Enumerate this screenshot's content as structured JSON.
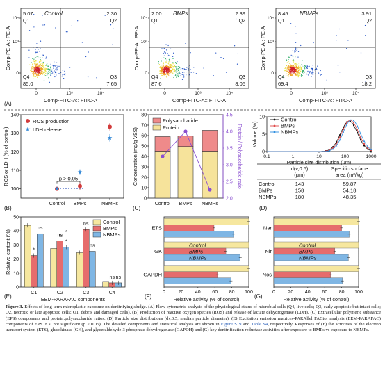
{
  "figure": {
    "flow_cytometry": {
      "panel_label": "(A)",
      "x_axis_label": "Comp-FITC-A:: FITC-A",
      "y_axis_label": "Comp-PE-A:: PE-A",
      "x_ticks": [
        "0",
        "10³",
        "10⁴"
      ],
      "y_ticks": [
        "0",
        "10³",
        "10⁴"
      ],
      "quadrant_names": [
        "Q1",
        "Q2",
        "Q3",
        "Q4"
      ],
      "plots": [
        {
          "title": "Control",
          "q1": "5.07",
          "q2": "2.30",
          "q3": "7.65",
          "q4": "85.0"
        },
        {
          "title": "BMPs",
          "q1": "2.00",
          "q2": "2.39",
          "q3": "8.05",
          "q4": "87.6"
        },
        {
          "title": "NBMPs",
          "q1": "8.45",
          "q2": "3.91",
          "q3": "18.2",
          "q4": "69.4"
        }
      ]
    },
    "panel_b": {
      "label": "(B)",
      "ylabel": "ROS or LDH (% of control)",
      "legend": [
        "ROS production",
        "LDH release"
      ],
      "annotation": "p > 0.05"
    },
    "panel_c": {
      "label": "(C)",
      "ylabel": "Concentration (mg/g VSS)",
      "y2label": "Protein / Polysaccharide ratio",
      "legend": [
        "Polysaccharide",
        "Protein"
      ]
    },
    "panel_d": {
      "label": "(D)",
      "ylabel": "Volume (%)",
      "xlabel": "Particle size distribution (μm)",
      "legend": [
        "Control",
        "BMPs",
        "NBMPs"
      ],
      "table_headers": [
        "d(v,0.5) (μm)",
        "Specific surface area (m²/kg)"
      ],
      "table_rows": [
        {
          "name": "Control",
          "d": "143",
          "area": "59.87"
        },
        {
          "name": "BMPs",
          "d": "158",
          "area": "54.18"
        },
        {
          "name": "NBMPs",
          "d": "180",
          "area": "48.35"
        }
      ]
    },
    "panel_e": {
      "label": "(E)",
      "ylabel": "Relative content (%)",
      "xlabel": "EEM-PARAFAC components",
      "legend": [
        "Control",
        "BMPs",
        "NBMPs"
      ],
      "sig_labels": [
        "*",
        "ns",
        "ns",
        "*",
        "ns",
        "*",
        "ns",
        "ns",
        "ns",
        "ns"
      ]
    },
    "panel_f": {
      "label": "(F)",
      "xlabel": "Relative activity (% of control)",
      "legend": [
        "Control",
        "BMPs",
        "NBMPs"
      ]
    },
    "panel_g": {
      "label": "(G)",
      "xlabel": "Relative activity (% of control)"
    },
    "colors": {
      "control": "#f6e79f",
      "bmps": "#e66c6c",
      "nbmps": "#7fb6e4",
      "protein": "#f6e39b",
      "polysaccharide": "#ef8a8a",
      "ratio": "#8a4fd0"
    }
  },
  "caption": {
    "lead": "Figure 3.",
    "text": "Effects of long-term microplastic exposure on denitrifying sludge. (A) Flow cytometric analysis of the physiological status of microbial cells (Q4, live cells; Q3, early apoptotic but intact cells; Q2, necrotic or late apoptotic cells; Q1, debris and damaged cells). (B) Production of reactive oxygen species (ROS) and release of lactate dehydrogenase (LDH). (C) Extracellular polymeric substance (EPS) components and protein:polysaccharide ratios. (D) Particle size distributions (dv,0.5, median particle diameter). (E) Excitation emission matrices-PARAllel FACtor analysis (EEM-PARAFAC) components of EPS. n.s: not significant (p > 0.05). The detailed components and statistical analysis are shown in",
    "link1": "Figure S19",
    "mid": "and",
    "link2": "Table S4",
    "tail": ", respectively. Responses of (F) the activities of the electron transport system (ETS), glucokinase (GK), and glyceraldehyde-3-phosphate dehydrogenase (GAPDH) and (G) key denitrification reductase activities after exposure to BMPs vs exposure to NBMPs."
  },
  "chart_data": [
    {
      "type": "scatter",
      "panel": "B",
      "categories": [
        "Control",
        "BMPs",
        "NBMPs"
      ],
      "series": [
        {
          "name": "ROS production",
          "values": [
            100,
            101.5,
            133.5
          ],
          "errors": [
            0,
            2,
            2
          ]
        },
        {
          "name": "LDH release",
          "values": [
            100,
            109,
            127.5
          ],
          "errors": [
            0,
            1.5,
            2
          ]
        }
      ],
      "ylabel": "ROS or LDH (% of control)",
      "ylim": [
        95,
        140
      ],
      "yticks": [
        100,
        110,
        120,
        130,
        140
      ]
    },
    {
      "type": "bar",
      "panel": "C",
      "stacked": true,
      "categories": [
        "Control",
        "BMPs",
        "NBMPs"
      ],
      "series": [
        {
          "name": "Protein",
          "values": [
            45,
            49.5,
            45
          ]
        },
        {
          "name": "Polysaccharide",
          "values": [
            14,
            10,
            20
          ]
        }
      ],
      "line_series": {
        "name": "Protein / Polysaccharide ratio",
        "values": [
          3.25,
          4.0,
          2.25
        ]
      },
      "ylabel": "Concentration (mg/g VSS)",
      "ylim": [
        0,
        80
      ],
      "yticks": [
        0,
        10,
        20,
        30,
        40,
        50,
        60,
        70,
        80
      ],
      "y2label": "Protein / Polysaccharide ratio",
      "y2lim": [
        2.0,
        4.5
      ],
      "y2ticks": [
        2.0,
        2.5,
        3.0,
        3.5,
        4.0,
        4.5
      ]
    },
    {
      "type": "line",
      "panel": "D",
      "x_scale": "log",
      "xlim": [
        0.1,
        1000
      ],
      "xticks": [
        "0.1",
        "1",
        "10",
        "100",
        "1000"
      ],
      "series": [
        {
          "name": "Control",
          "peak_x": 143,
          "peak_y": 8.8
        },
        {
          "name": "BMPs",
          "peak_x": 158,
          "peak_y": 9.0
        },
        {
          "name": "NBMPs",
          "peak_x": 180,
          "peak_y": 9.2
        }
      ],
      "ylabel": "Volume (%)",
      "ylim": [
        0,
        10
      ],
      "yticks": [
        0,
        5,
        10
      ]
    },
    {
      "type": "bar",
      "panel": "E",
      "categories": [
        "C1",
        "C2",
        "C3",
        "C4"
      ],
      "series": [
        {
          "name": "Control",
          "values": [
            44,
            27.5,
            24.5,
            4
          ]
        },
        {
          "name": "BMPs",
          "values": [
            22.5,
            33,
            41,
            3
          ]
        },
        {
          "name": "NBMPs",
          "values": [
            38,
            28.5,
            25.5,
            3
          ]
        }
      ],
      "ylabel": "Relative content (%)",
      "ylim": [
        0,
        50
      ],
      "yticks": [
        0,
        10,
        20,
        30,
        40,
        50
      ]
    },
    {
      "type": "bar",
      "panel": "F",
      "orientation": "horizontal",
      "categories": [
        "ETS",
        "GK",
        "GAPDH"
      ],
      "series": [
        {
          "name": "Control",
          "values": [
            100,
            100,
            100
          ]
        },
        {
          "name": "BMPs",
          "values": [
            59,
            73,
            63
          ]
        },
        {
          "name": "NBMPs",
          "values": [
            82,
            90,
            79
          ]
        }
      ],
      "xlabel": "Relative activity (% of control)",
      "xlim": [
        0,
        100
      ],
      "xticks": [
        0,
        20,
        40,
        60,
        80,
        100
      ]
    },
    {
      "type": "bar",
      "panel": "G",
      "orientation": "horizontal",
      "categories": [
        "Nar",
        "Nir",
        "Nos"
      ],
      "series": [
        {
          "name": "Control",
          "values": [
            100,
            100,
            100
          ]
        },
        {
          "name": "BMPs",
          "values": [
            80,
            72,
            67
          ]
        },
        {
          "name": "NBMPs",
          "values": [
            89,
            88,
            81
          ]
        }
      ],
      "xlabel": "Relative activity (% of control)",
      "xlim": [
        0,
        100
      ],
      "xticks": [
        0,
        20,
        40,
        60,
        80,
        100
      ]
    }
  ]
}
